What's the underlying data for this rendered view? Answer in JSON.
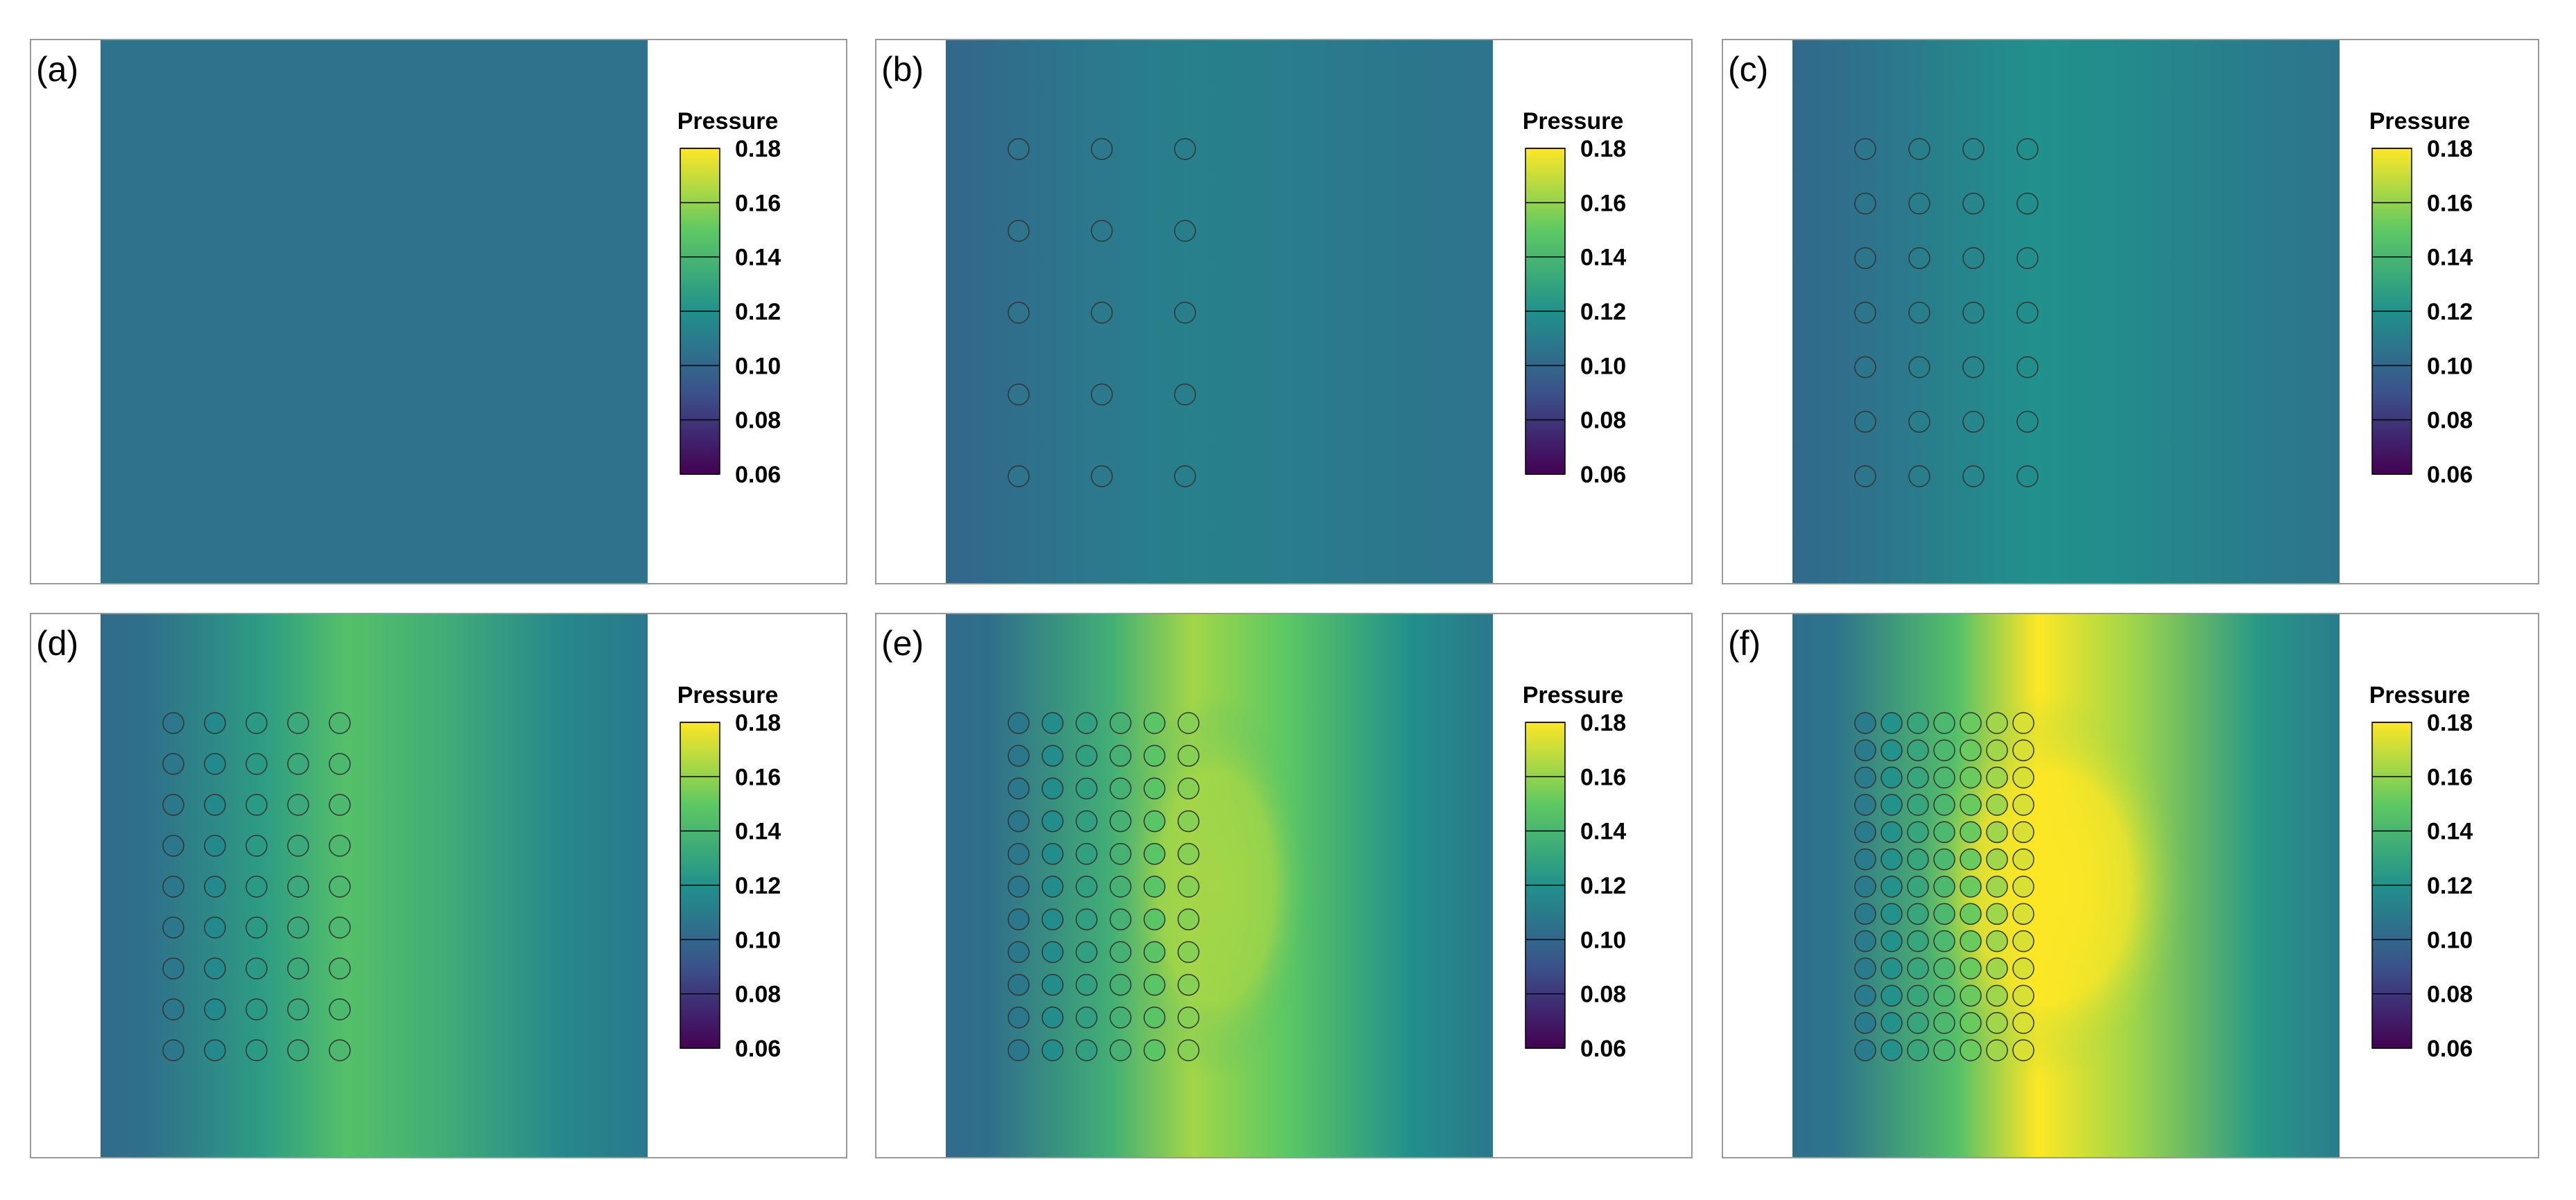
{
  "chart_data": [
    {
      "type": "heatmap",
      "panel_label": "(a)",
      "colorbar_title": "Pressure",
      "colorbar_ticks": [
        "0.18",
        "0.16",
        "0.14",
        "0.12",
        "0.10",
        "0.08",
        "0.06"
      ],
      "vmin": 0.06,
      "vmax": 0.18,
      "obstacle_grid": {
        "columns": 0,
        "rows": 0
      },
      "background_value": 0.105,
      "peak_value": 0.105
    },
    {
      "type": "heatmap",
      "panel_label": "(b)",
      "colorbar_title": "Pressure",
      "colorbar_ticks": [
        "0.18",
        "0.16",
        "0.14",
        "0.12",
        "0.10",
        "0.08",
        "0.06"
      ],
      "vmin": 0.06,
      "vmax": 0.18,
      "obstacle_grid": {
        "columns": 3,
        "rows": 5
      },
      "background_value": 0.106,
      "peak_value": 0.112
    },
    {
      "type": "heatmap",
      "panel_label": "(c)",
      "colorbar_title": "Pressure",
      "colorbar_ticks": [
        "0.18",
        "0.16",
        "0.14",
        "0.12",
        "0.10",
        "0.08",
        "0.06"
      ],
      "vmin": 0.06,
      "vmax": 0.18,
      "obstacle_grid": {
        "columns": 4,
        "rows": 7
      },
      "background_value": 0.107,
      "peak_value": 0.12
    },
    {
      "type": "heatmap",
      "panel_label": "(d)",
      "colorbar_title": "Pressure",
      "colorbar_ticks": [
        "0.18",
        "0.16",
        "0.14",
        "0.12",
        "0.10",
        "0.08",
        "0.06"
      ],
      "vmin": 0.06,
      "vmax": 0.18,
      "obstacle_grid": {
        "columns": 5,
        "rows": 9
      },
      "background_value": 0.108,
      "peak_value": 0.145
    },
    {
      "type": "heatmap",
      "panel_label": "(e)",
      "colorbar_title": "Pressure",
      "colorbar_ticks": [
        "0.18",
        "0.16",
        "0.14",
        "0.12",
        "0.10",
        "0.08",
        "0.06"
      ],
      "vmin": 0.06,
      "vmax": 0.18,
      "obstacle_grid": {
        "columns": 6,
        "rows": 11
      },
      "background_value": 0.108,
      "peak_value": 0.163
    },
    {
      "type": "heatmap",
      "panel_label": "(f)",
      "colorbar_title": "Pressure",
      "colorbar_ticks": [
        "0.18",
        "0.16",
        "0.14",
        "0.12",
        "0.10",
        "0.08",
        "0.06"
      ],
      "vmin": 0.06,
      "vmax": 0.18,
      "obstacle_grid": {
        "columns": 7,
        "rows": 13
      },
      "background_value": 0.11,
      "peak_value": 0.18
    }
  ],
  "colors": {
    "colormap": [
      "#440154",
      "#3b528b",
      "#21918c",
      "#5ec962",
      "#fde725"
    ],
    "panel_border": "#999999",
    "obstacle_edge": "#333333",
    "left_stripe": "#ffffff"
  }
}
